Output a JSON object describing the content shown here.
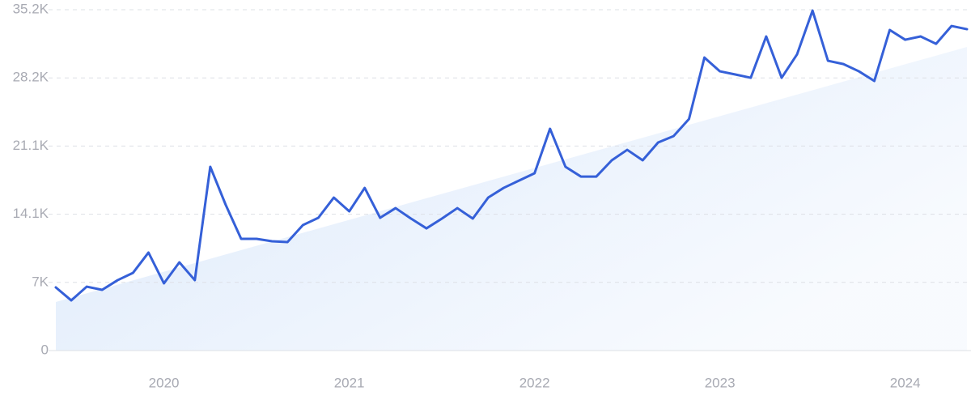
{
  "chart_data": {
    "type": "line",
    "categories": [
      null,
      null,
      null,
      null,
      null,
      null,
      null,
      "2020",
      null,
      null,
      null,
      null,
      null,
      null,
      null,
      null,
      null,
      null,
      null,
      "2021",
      null,
      null,
      null,
      null,
      null,
      null,
      null,
      null,
      null,
      null,
      null,
      "2022",
      null,
      null,
      null,
      null,
      null,
      null,
      null,
      null,
      null,
      null,
      null,
      "2023",
      null,
      null,
      null,
      null,
      null,
      null,
      null,
      null,
      null,
      null,
      null,
      "2024",
      null,
      null,
      null,
      null
    ],
    "series": [
      {
        "color": "#3560d8",
        "values": [
          6520,
          5180,
          6600,
          6270,
          7270,
          8030,
          10120,
          6940,
          9110,
          7270,
          18980,
          15050,
          11540,
          11540,
          11290,
          11200,
          12960,
          13710,
          15800,
          14380,
          16800,
          13710,
          14710,
          13630,
          12620,
          13630,
          14710,
          13630,
          15800,
          16800,
          17560,
          18310,
          22910,
          18980,
          17970,
          17970,
          19650,
          20730,
          19650,
          21490,
          22150,
          23910,
          30260,
          28840,
          28510,
          28170,
          32440,
          28170,
          30600,
          35110,
          29930,
          29590,
          28840,
          27840,
          33110,
          32100,
          32440,
          31680,
          33520,
          33190
        ]
      }
    ],
    "trend": {
      "color": "#dce9fb",
      "values": [
        5020,
        31350
      ]
    },
    "ylim": [
      0,
      35200
    ],
    "yticks": [
      0,
      {
        "value": 7040,
        "label": "7K"
      },
      {
        "value": 14080,
        "label": "14.1K"
      },
      {
        "value": 21120,
        "label": "21.1K"
      },
      {
        "value": 28160,
        "label": "28.2K"
      },
      {
        "value": 35200,
        "label": "35.2K"
      }
    ],
    "grid": true
  }
}
